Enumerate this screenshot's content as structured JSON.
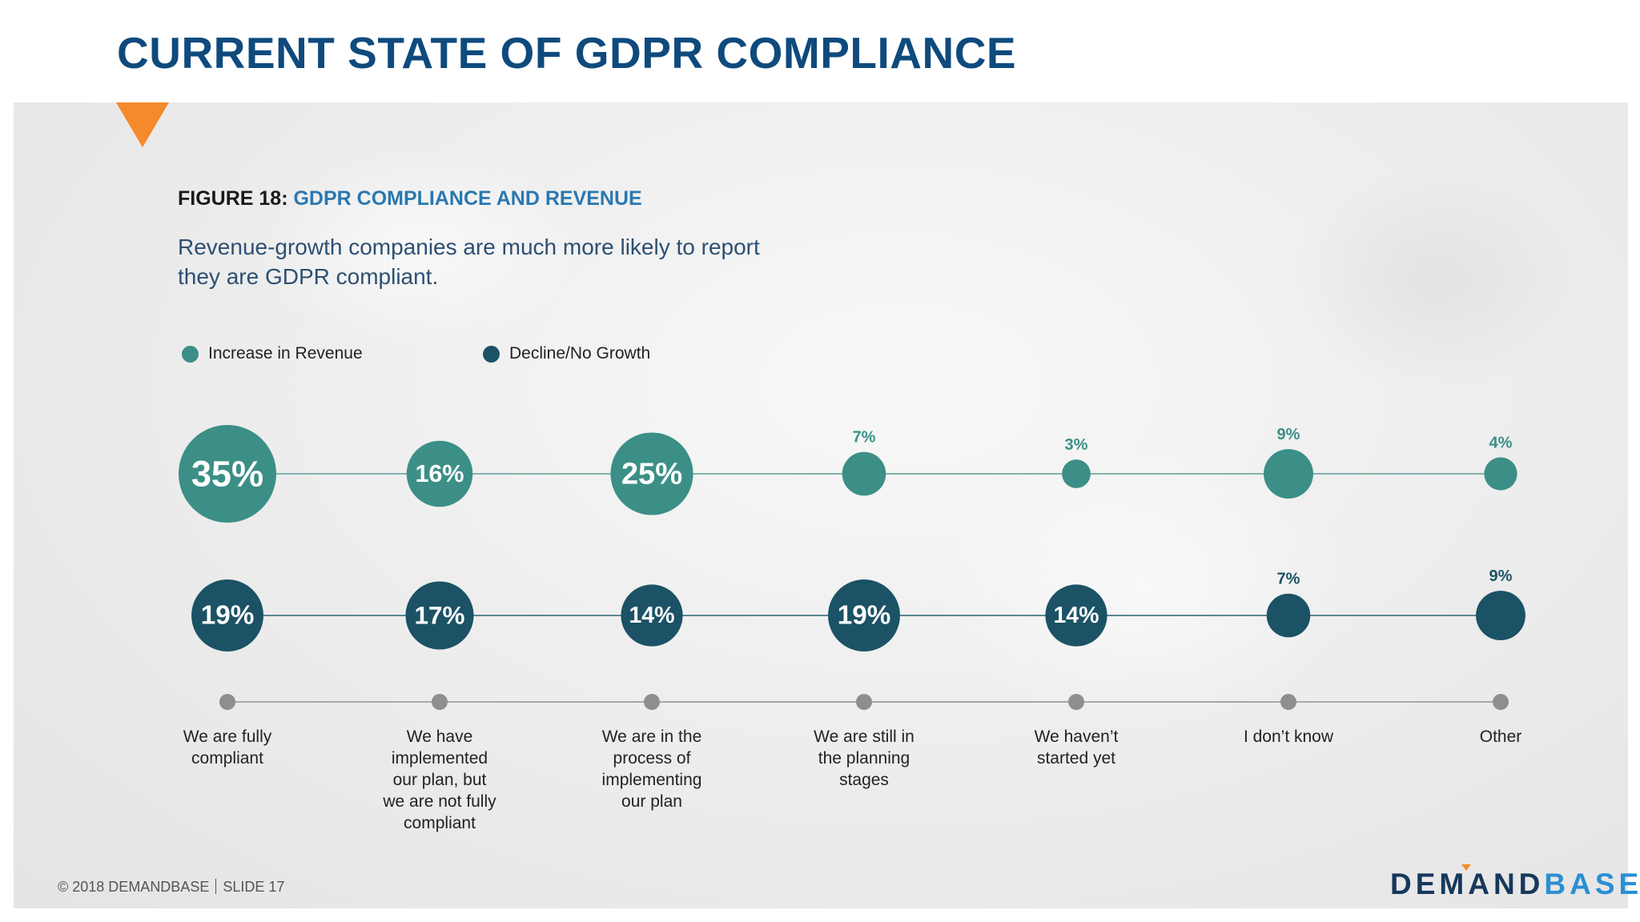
{
  "header": {
    "title": "CURRENT STATE OF GDPR COMPLIANCE"
  },
  "figure": {
    "number": "FIGURE 18:",
    "title": "GDPR COMPLIANCE AND REVENUE",
    "subtitle_line1": "Revenue-growth companies are much more likely to report",
    "subtitle_line2": "they are GDPR compliant."
  },
  "chart_data": {
    "type": "scatter",
    "categories": [
      [
        "We are fully",
        "compliant"
      ],
      [
        "We have",
        "implemented",
        "our plan, but",
        "we are not fully",
        "compliant"
      ],
      [
        "We are in the",
        "process of",
        "implementing",
        "our plan"
      ],
      [
        "We are still in",
        "the planning",
        "stages"
      ],
      [
        "We haven’t",
        "started yet"
      ],
      [
        "I don’t know"
      ],
      [
        "Other"
      ]
    ],
    "series": [
      {
        "name": "Increase in Revenue",
        "color": "#3b8f86",
        "values": [
          35,
          16,
          25,
          7,
          3,
          9,
          4
        ]
      },
      {
        "name": "Decline/No Growth",
        "color": "#1b5265",
        "values": [
          19,
          17,
          14,
          19,
          14,
          7,
          9
        ]
      }
    ],
    "value_suffix": "%",
    "encoding": "bubble area proportional to value",
    "legend_position": "top-left"
  },
  "colors": {
    "title": "#0f4a7d",
    "accent": "#f58a2a",
    "connector_teal": "#7fb4ad",
    "connector_dark": "#5c8793",
    "axis": "#a8a8a8",
    "category_dot": "#8e8e8e"
  },
  "footer": {
    "copyright": "© 2018 DEMANDBASE",
    "slide": "SLIDE 17"
  },
  "logo": {
    "part1": "DEMAND",
    "part2": "BASE"
  }
}
